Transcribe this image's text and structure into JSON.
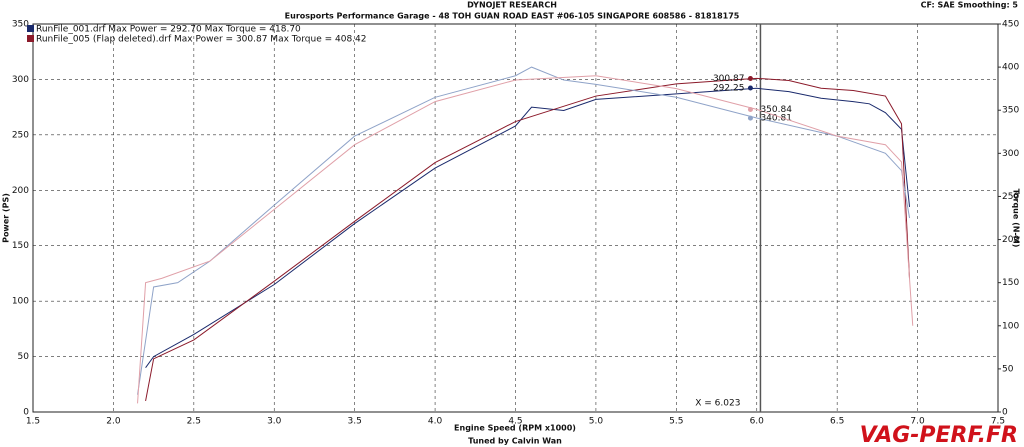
{
  "chart_data": {
    "type": "line",
    "title": "DYNOJET RESEARCH",
    "subtitle": "Eurosports Performance Garage - 48 TOH GUAN ROAD EAST #06-105 SINGAPORE 608586 - 81818175",
    "settings_text": "CF: SAE  Smoothing: 5",
    "x_label": "Engine Speed (RPM x1000)",
    "y_label": "Power (PS)",
    "y2_label": "Torque (N-M)",
    "footer": "Tuned by Calvin Wan",
    "watermark": "VAG-PERF.FR",
    "xlim": [
      1.5,
      7.5
    ],
    "xticks": [
      {
        "value": 1.5,
        "label": "1.5"
      },
      {
        "value": 2,
        "label": "2.0"
      },
      {
        "value": 2.5,
        "label": "2.5"
      },
      {
        "value": 3,
        "label": "3.0"
      },
      {
        "value": 3.5,
        "label": "3.5"
      },
      {
        "value": 4,
        "label": "4.0"
      },
      {
        "value": 4.5,
        "label": "4.5"
      },
      {
        "value": 5,
        "label": "5.0"
      },
      {
        "value": 5.5,
        "label": "5.5"
      },
      {
        "value": 6,
        "label": "6.0"
      },
      {
        "value": 6.5,
        "label": "6.5"
      },
      {
        "value": 7,
        "label": "7.0"
      },
      {
        "value": 7.5,
        "label": "7.5"
      }
    ],
    "ylim": [
      0,
      350
    ],
    "yticks": [
      0,
      50,
      100,
      150,
      200,
      250,
      300,
      350
    ],
    "y2lim": [
      0,
      450
    ],
    "y2ticks": [
      0,
      50,
      100,
      150,
      200,
      250,
      300,
      350,
      400,
      450
    ],
    "grid": true,
    "cursor": {
      "value": 6.023,
      "label": "X = 6.023"
    },
    "series": [
      {
        "name": "RunFile_001.drf Max Power = 292.70    Max Torque = 418.70",
        "color": "#1a2a6c",
        "x": [
          2.2,
          2.25,
          2.5,
          3.0,
          3.5,
          4.0,
          4.5,
          4.6,
          4.8,
          5.0,
          5.5,
          5.8,
          6.0,
          6.2,
          6.4,
          6.6,
          6.7,
          6.8,
          6.9,
          6.95
        ],
        "values": [
          40,
          50,
          70,
          115,
          170,
          220,
          258,
          275,
          272,
          282,
          287,
          290,
          292,
          289,
          283,
          280,
          278,
          270,
          255,
          185
        ],
        "cursor_value": 292.25
      },
      {
        "name": "RunFile_005 (Flap deleted).drf Max Power = 300.87    Max Torque = 408.42",
        "color": "#8b1a2a",
        "x": [
          2.2,
          2.25,
          2.5,
          3.0,
          3.5,
          4.0,
          4.5,
          5.0,
          5.5,
          5.9,
          6.0,
          6.2,
          6.4,
          6.6,
          6.8,
          6.9,
          6.95
        ],
        "values": [
          10,
          48,
          65,
          118,
          172,
          225,
          262,
          285,
          296,
          300,
          301,
          299,
          292,
          290,
          285,
          260,
          120
        ],
        "cursor_value": 300.87
      },
      {
        "color": "#8fa3c8",
        "axis": "y2",
        "x": [
          2.15,
          2.25,
          2.4,
          2.6,
          3.0,
          3.5,
          4.0,
          4.5,
          4.6,
          4.8,
          5.0,
          5.5,
          6.0,
          6.5,
          6.8,
          6.9,
          6.95
        ],
        "values": [
          20,
          145,
          150,
          175,
          240,
          320,
          365,
          390,
          400,
          385,
          380,
          365,
          341,
          320,
          300,
          280,
          225
        ],
        "cursor_value": 340.81
      },
      {
        "color": "#e0a0a8",
        "axis": "y2",
        "x": [
          2.15,
          2.2,
          2.3,
          2.6,
          3.0,
          3.5,
          4.0,
          4.5,
          5.0,
          5.5,
          6.0,
          6.5,
          6.8,
          6.9,
          6.97
        ],
        "values": [
          10,
          150,
          155,
          175,
          235,
          310,
          360,
          385,
          390,
          375,
          351,
          320,
          310,
          290,
          100
        ],
        "cursor_value": 350.84
      }
    ]
  }
}
